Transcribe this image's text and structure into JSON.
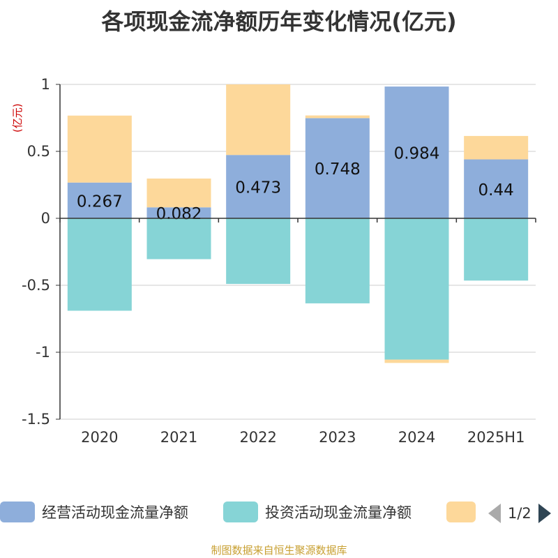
{
  "chart_data": {
    "type": "bar",
    "stacked": true,
    "title": "各项现金流净额历年变化情况(亿元)",
    "ylabel": "(亿元)",
    "categories": [
      "2020",
      "2021",
      "2022",
      "2023",
      "2024",
      "2025H1"
    ],
    "ylim": [
      -1.5,
      1
    ],
    "yticks": [
      "1",
      "0.5",
      "0",
      "-0.5",
      "-1",
      "-1.5"
    ],
    "ytick_values": [
      1,
      0.5,
      0,
      -0.5,
      -1,
      -1.5
    ],
    "grid": true,
    "legend_position": "bottom",
    "series": [
      {
        "name": "经营活动现金流量净额",
        "color": "#8eaedb",
        "values": [
          0.267,
          0.082,
          0.473,
          0.748,
          0.984,
          0.44
        ],
        "labels": [
          "0.267",
          "0.082",
          "0.473",
          "0.748",
          "0.984",
          "0.44"
        ]
      },
      {
        "name": "投资活动现金流量净额",
        "color": "#86d4d6",
        "values": [
          -0.69,
          -0.305,
          -0.49,
          -0.635,
          -1.055,
          -0.465
        ]
      },
      {
        "name": "",
        "color": "#fdd89a",
        "values": [
          0.5,
          0.215,
          0.527,
          0.02,
          -0.025,
          0.175
        ]
      }
    ]
  },
  "legend": {
    "page_text": "1/2"
  },
  "source_text": "制图数据来自恒生聚源数据库"
}
